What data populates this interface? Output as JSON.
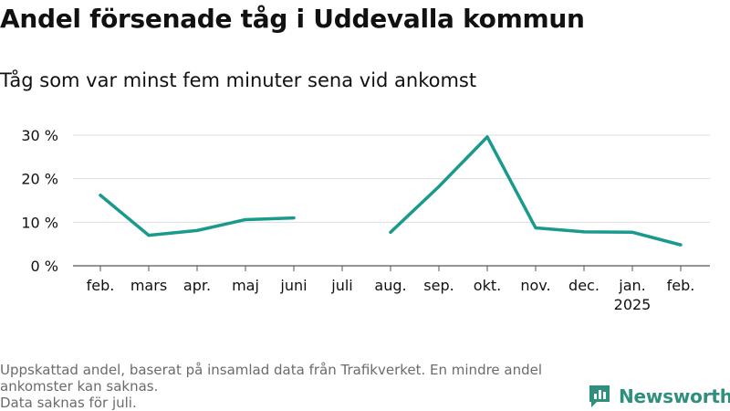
{
  "colors": {
    "series": "#1a9a8c",
    "grid": "#dddddd",
    "axis": "#555555",
    "text": "#111111",
    "footnote": "#6b6b6b",
    "brand": "#2f8f7d"
  },
  "chart_data": {
    "type": "line",
    "title": "Andel försenade tåg i Uddevalla kommun",
    "subtitle": "Tåg som var minst fem minuter sena vid ankomst",
    "categories": [
      "feb.",
      "mars",
      "apr.",
      "maj",
      "juni",
      "juli",
      "aug.",
      "sep.",
      "okt.",
      "nov.",
      "dec.",
      "jan.",
      "feb."
    ],
    "category_sublabels": [
      "",
      "",
      "",
      "",
      "",
      "",
      "",
      "",
      "",
      "",
      "",
      "2025",
      ""
    ],
    "series": [
      {
        "values": [
          16.2,
          7.0,
          8.1,
          10.6,
          11.0,
          null,
          7.7,
          18.2,
          29.6,
          8.7,
          7.8,
          7.7,
          4.8
        ]
      }
    ],
    "ylim": [
      0,
      30
    ],
    "yticks": [
      0,
      10,
      20,
      30
    ],
    "ytick_labels": [
      "0 %",
      "10 %",
      "20 %",
      "30 %"
    ],
    "grid": true,
    "legend": "none"
  },
  "footnote": {
    "line1": "Uppskattad andel, baserat på insamlad data från Trafikverket. En mindre andel ankomster kan saknas.",
    "line2": "Data saknas för juli."
  },
  "brand": {
    "name": "Newsworthy",
    "icon": "newsworthy-logo-icon"
  }
}
